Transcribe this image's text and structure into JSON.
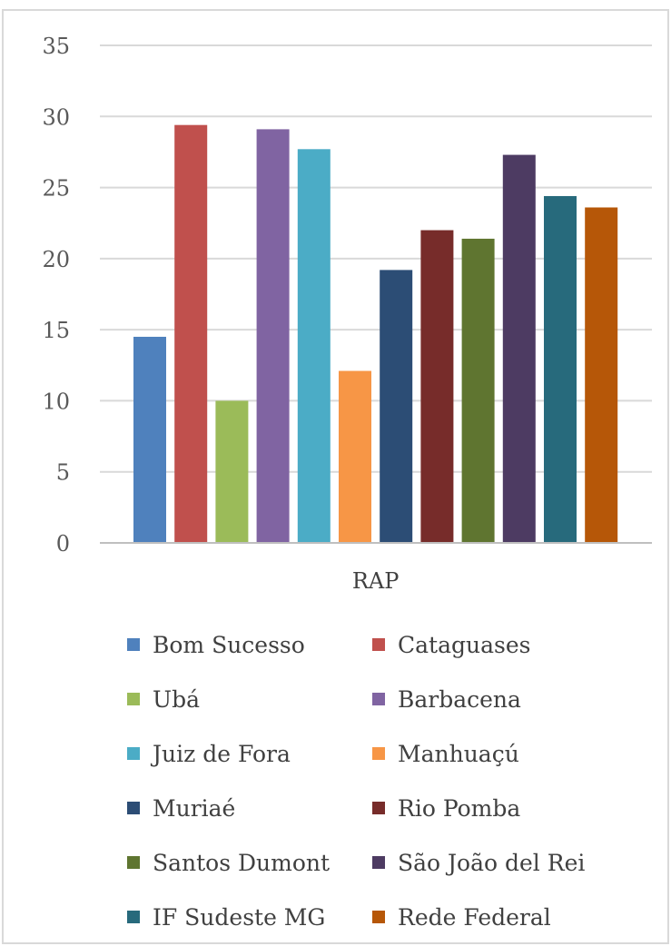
{
  "chart_data": {
    "type": "bar",
    "title": "",
    "xlabel": "",
    "ylabel": "",
    "categories": [
      "RAP"
    ],
    "ylim": [
      0,
      35
    ],
    "yticks": [
      0,
      5,
      10,
      15,
      20,
      25,
      30,
      35
    ],
    "grid": true,
    "legend_position": "bottom",
    "series": [
      {
        "name": "Bom Sucesso",
        "values": [
          14.5
        ],
        "color": "#4F81BD"
      },
      {
        "name": "Cataguases",
        "values": [
          29.4
        ],
        "color": "#C0504D"
      },
      {
        "name": "Ubá",
        "values": [
          10.0
        ],
        "color": "#9BBB59"
      },
      {
        "name": "Barbacena",
        "values": [
          29.1
        ],
        "color": "#8064A2"
      },
      {
        "name": "Juiz de Fora",
        "values": [
          27.7
        ],
        "color": "#4BACC6"
      },
      {
        "name": "Manhuaçú",
        "values": [
          12.1
        ],
        "color": "#F79646"
      },
      {
        "name": "Muriaé",
        "values": [
          19.2
        ],
        "color": "#2C4D75"
      },
      {
        "name": "Rio Pomba",
        "values": [
          22.0
        ],
        "color": "#772C2A"
      },
      {
        "name": "Santos Dumont",
        "values": [
          21.4
        ],
        "color": "#5F7530"
      },
      {
        "name": "São João del Rei",
        "values": [
          27.3
        ],
        "color": "#4D3B62"
      },
      {
        "name": "IF Sudeste MG",
        "values": [
          24.4
        ],
        "color": "#276A7C"
      },
      {
        "name": "Rede Federal",
        "values": [
          23.6
        ],
        "color": "#B65708"
      }
    ],
    "gridline_color": "#d9d9d9",
    "axis_color": "#bfbfbf"
  }
}
